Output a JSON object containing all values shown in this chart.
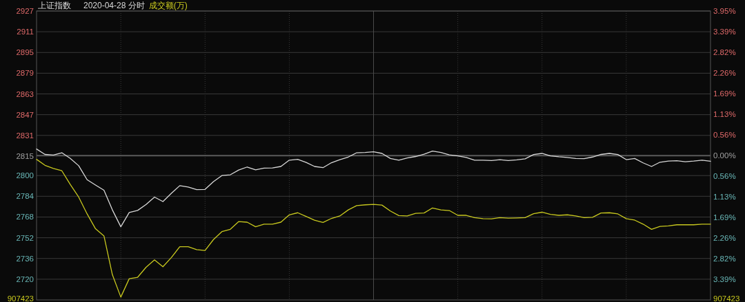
{
  "chart_data": {
    "type": "line",
    "title": "2020-04-28 分时",
    "categories": [
      null,
      null,
      null,
      null,
      null,
      null,
      null,
      null,
      null,
      null,
      null,
      null,
      null,
      null,
      null,
      null,
      null,
      null,
      null,
      null,
      null,
      null,
      null,
      null,
      null,
      null,
      null,
      null,
      null,
      null,
      null,
      null,
      null,
      null,
      null,
      null,
      null,
      null,
      null,
      null,
      null,
      null,
      null,
      null,
      null,
      null,
      null,
      null,
      null,
      null,
      null,
      null,
      null,
      null,
      null,
      null,
      null,
      null,
      null,
      null,
      null,
      null,
      null,
      null,
      null,
      null,
      null,
      null,
      null,
      null,
      null,
      null,
      null,
      null,
      null,
      null,
      null,
      null,
      null,
      null,
      null
    ],
    "series": [
      {
        "name": "上证指数",
        "color": "#d8d8d8",
        "values": [
          2820.5,
          2816.3,
          2815.8,
          2817.6,
          2813.2,
          2807.6,
          2796.8,
          2792.7,
          2788.7,
          2773.5,
          2760.5,
          2771.5,
          2773.1,
          2777.7,
          2783.4,
          2779.9,
          2786.3,
          2792.2,
          2791.1,
          2789.1,
          2789.3,
          2795.3,
          2800.0,
          2800.6,
          2804.3,
          2806.6,
          2804.4,
          2805.7,
          2805.9,
          2807.0,
          2811.9,
          2812.5,
          2810.1,
          2807.0,
          2806.1,
          2809.9,
          2812.3,
          2814.3,
          2817.6,
          2817.8,
          2818.4,
          2817.1,
          2813.2,
          2811.8,
          2813.6,
          2814.7,
          2816.5,
          2818.9,
          2817.8,
          2816.0,
          2815.2,
          2814.0,
          2811.9,
          2811.9,
          2811.6,
          2812.3,
          2811.6,
          2812.1,
          2812.9,
          2816.2,
          2817.1,
          2815.2,
          2814.5,
          2814.0,
          2813.2,
          2813.0,
          2814.3,
          2816.3,
          2817.1,
          2816.2,
          2812.3,
          2813.2,
          2809.8,
          2807.0,
          2810.3,
          2811.2,
          2811.4,
          2810.7,
          2811.2,
          2811.9,
          2811.0
        ]
      },
      {
        "name": "成交额(万)",
        "color": "#c8c81e",
        "values": [
          2812.5,
          2807.9,
          2805.5,
          2803.7,
          2793.1,
          2783.4,
          2770.4,
          2758.9,
          2753.4,
          2723.5,
          2706.2,
          2720.4,
          2721.5,
          2729.2,
          2734.9,
          2729.6,
          2736.7,
          2745.1,
          2745.1,
          2742.8,
          2742.2,
          2750.6,
          2756.7,
          2758.5,
          2764.5,
          2764.0,
          2760.5,
          2762.5,
          2762.5,
          2764.0,
          2769.7,
          2771.3,
          2768.4,
          2765.5,
          2763.8,
          2766.9,
          2768.8,
          2773.5,
          2776.8,
          2777.4,
          2777.7,
          2777.2,
          2772.6,
          2769.1,
          2768.8,
          2770.8,
          2771.1,
          2775.0,
          2773.5,
          2773.0,
          2769.3,
          2769.3,
          2767.5,
          2766.7,
          2766.6,
          2767.5,
          2767.1,
          2767.3,
          2767.5,
          2770.6,
          2771.7,
          2770.0,
          2769.3,
          2769.7,
          2768.8,
          2767.5,
          2767.8,
          2771.1,
          2771.3,
          2770.4,
          2766.7,
          2765.6,
          2762.5,
          2758.5,
          2760.7,
          2761.1,
          2762.0,
          2762.0,
          2762.0,
          2762.5,
          2762.5
        ]
      }
    ],
    "ylim": [
      2704,
      2927
    ],
    "yticks": [
      2927,
      2911,
      2895,
      2879,
      2863,
      2847,
      2831,
      2815,
      2800,
      2784,
      2768,
      2752,
      2736,
      2720
    ],
    "y2lim": [
      -3.95,
      3.95
    ],
    "y2ticks": [
      {
        "value": 3.95,
        "label": "3.95%"
      },
      {
        "value": 3.39,
        "label": "3.39%"
      },
      {
        "value": 2.82,
        "label": "2.82%"
      },
      {
        "value": 2.26,
        "label": "2.26%"
      },
      {
        "value": 1.69,
        "label": "1.69%"
      },
      {
        "value": 1.13,
        "label": "1.13%"
      },
      {
        "value": 0.56,
        "label": "0.56%"
      },
      {
        "value": 0,
        "label": "0.00%"
      },
      {
        "value": -0.56,
        "label": "0.56%"
      },
      {
        "value": -1.13,
        "label": "1.13%"
      },
      {
        "value": -1.69,
        "label": "1.69%"
      },
      {
        "value": -2.26,
        "label": "2.26%"
      },
      {
        "value": -2.82,
        "label": "2.82%"
      },
      {
        "value": -3.39,
        "label": "3.39%"
      }
    ],
    "ref_lines": [
      {
        "axis": "y2",
        "value": 0,
        "color": "#8a8a8a"
      }
    ],
    "grid": true,
    "legend": "top left",
    "annotations": [
      "907423",
      "907423"
    ]
  }
}
